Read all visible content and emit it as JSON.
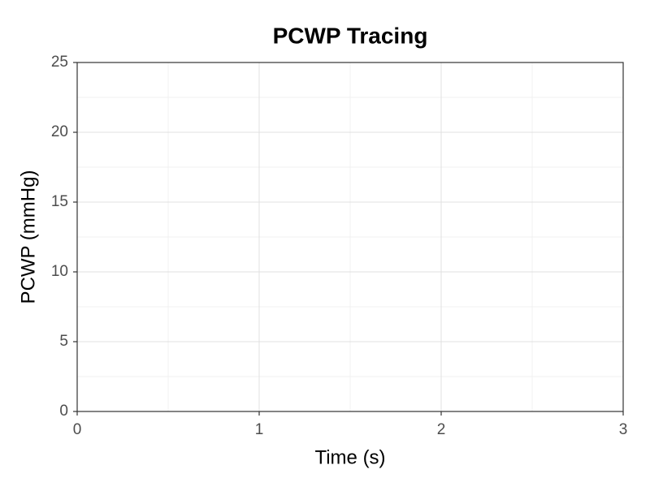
{
  "chart_data": {
    "type": "line",
    "title": "PCWP Tracing",
    "x_label": "Time (s)",
    "y_label": "PCWP (mmHg)",
    "xlim": [
      0,
      3
    ],
    "xticks": [
      0,
      1,
      2,
      3
    ],
    "ylim": [
      0,
      25
    ],
    "yticks": [
      0,
      5,
      10,
      15,
      20,
      25
    ],
    "grid": true
  }
}
